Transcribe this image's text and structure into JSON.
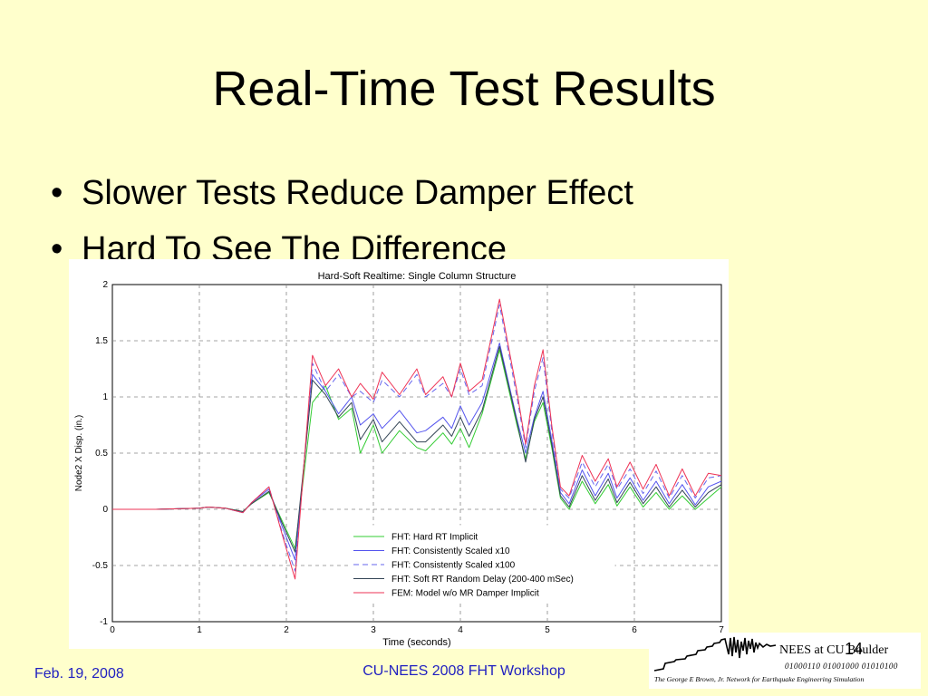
{
  "slide": {
    "title": "Real-Time Test Results",
    "bullets": [
      "Slower Tests Reduce Damper Effect",
      "Hard To See The Difference"
    ],
    "footer_date": "Feb. 19,  2008",
    "footer_center": "CU-NEES 2008 FHT Workshop",
    "slide_number": "14",
    "logo": {
      "name": "NEES at CU Boulder",
      "binary": "01000110  01001000  01010100",
      "subtitle": "The George E Brown, Jr. Network for Earthquake Engineering Simulation"
    }
  },
  "chart_data": {
    "type": "line",
    "title": "Hard-Soft Realtime: Single Column Structure",
    "xlabel": "Time (seconds)",
    "ylabel": "Node2 X Disp. (in.)",
    "xlim": [
      0,
      7
    ],
    "ylim": [
      -1,
      2
    ],
    "xticks": [
      0,
      1,
      2,
      3,
      4,
      5,
      6,
      7
    ],
    "yticks": [
      -1,
      -0.5,
      0,
      0.5,
      1,
      1.5,
      2
    ],
    "grid": true,
    "legend_position": "bottom-center",
    "series": [
      {
        "name": "FHT: Hard RT Implicit",
        "color": "#33cc33",
        "dash": false,
        "x": [
          0,
          0.5,
          1.0,
          1.1,
          1.3,
          1.5,
          1.6,
          1.8,
          1.95,
          2.1,
          2.3,
          2.45,
          2.6,
          2.75,
          2.85,
          3.0,
          3.1,
          3.3,
          3.5,
          3.6,
          3.8,
          3.9,
          4.0,
          4.1,
          4.25,
          4.45,
          4.65,
          4.75,
          4.85,
          4.95,
          5.05,
          5.15,
          5.25,
          5.4,
          5.55,
          5.7,
          5.8,
          5.95,
          6.1,
          6.25,
          6.4,
          6.55,
          6.7,
          6.85,
          7.0
        ],
        "y": [
          0,
          0,
          0.01,
          0.02,
          0.01,
          -0.02,
          0.05,
          0.15,
          -0.1,
          -0.35,
          0.95,
          1.1,
          0.8,
          0.9,
          0.5,
          0.75,
          0.5,
          0.7,
          0.55,
          0.52,
          0.68,
          0.58,
          0.72,
          0.55,
          0.85,
          1.42,
          0.75,
          0.45,
          0.78,
          0.95,
          0.55,
          0.1,
          0.0,
          0.25,
          0.05,
          0.22,
          0.03,
          0.2,
          0.02,
          0.15,
          0.0,
          0.12,
          0.0,
          0.1,
          0.2
        ]
      },
      {
        "name": "FHT: Consistently Scaled x10",
        "color": "#5555ee",
        "dash": false,
        "x": [
          0,
          0.5,
          1.0,
          1.1,
          1.3,
          1.5,
          1.6,
          1.8,
          1.95,
          2.1,
          2.3,
          2.45,
          2.6,
          2.75,
          2.85,
          3.0,
          3.1,
          3.3,
          3.5,
          3.6,
          3.8,
          3.9,
          4.0,
          4.1,
          4.25,
          4.45,
          4.65,
          4.75,
          4.85,
          4.95,
          5.05,
          5.15,
          5.25,
          5.4,
          5.55,
          5.7,
          5.8,
          5.95,
          6.1,
          6.25,
          6.4,
          6.55,
          6.7,
          6.85,
          7.0
        ],
        "y": [
          0,
          0,
          0.01,
          0.02,
          0.01,
          -0.03,
          0.06,
          0.18,
          -0.15,
          -0.45,
          1.2,
          1.05,
          0.85,
          1.0,
          0.75,
          0.85,
          0.72,
          0.88,
          0.68,
          0.7,
          0.82,
          0.72,
          0.92,
          0.75,
          0.95,
          1.48,
          0.8,
          0.5,
          0.82,
          1.05,
          0.62,
          0.15,
          0.05,
          0.35,
          0.12,
          0.32,
          0.1,
          0.28,
          0.08,
          0.25,
          0.05,
          0.22,
          0.04,
          0.2,
          0.25
        ]
      },
      {
        "name": "FHT: Consistently Scaled x100",
        "color": "#6666ee",
        "dash": true,
        "x": [
          0,
          0.5,
          1.0,
          1.1,
          1.3,
          1.5,
          1.6,
          1.8,
          1.95,
          2.1,
          2.3,
          2.45,
          2.6,
          2.75,
          2.85,
          3.0,
          3.1,
          3.3,
          3.5,
          3.6,
          3.8,
          3.9,
          4.0,
          4.1,
          4.25,
          4.45,
          4.65,
          4.75,
          4.85,
          4.95,
          5.05,
          5.15,
          5.25,
          5.4,
          5.55,
          5.7,
          5.8,
          5.95,
          6.1,
          6.25,
          6.4,
          6.55,
          6.7,
          6.85,
          7.0
        ],
        "y": [
          0,
          0,
          0.01,
          0.02,
          0.01,
          -0.03,
          0.06,
          0.2,
          -0.2,
          -0.55,
          1.3,
          1.05,
          1.2,
          1.0,
          1.05,
          0.95,
          1.15,
          1.0,
          1.2,
          1.0,
          1.12,
          1.0,
          1.25,
          1.02,
          1.1,
          1.82,
          1.0,
          0.55,
          1.05,
          1.35,
          0.7,
          0.18,
          0.1,
          0.42,
          0.2,
          0.4,
          0.18,
          0.36,
          0.14,
          0.34,
          0.1,
          0.3,
          0.1,
          0.28,
          0.3
        ]
      },
      {
        "name": "FHT: Soft RT Random Delay (200-400 mSec)",
        "color": "#334455",
        "dash": false,
        "x": [
          0,
          0.5,
          1.0,
          1.1,
          1.3,
          1.5,
          1.6,
          1.8,
          1.95,
          2.1,
          2.3,
          2.45,
          2.6,
          2.75,
          2.85,
          3.0,
          3.1,
          3.3,
          3.5,
          3.6,
          3.8,
          3.9,
          4.0,
          4.1,
          4.25,
          4.45,
          4.65,
          4.75,
          4.85,
          4.95,
          5.05,
          5.15,
          5.25,
          5.4,
          5.55,
          5.7,
          5.8,
          5.95,
          6.1,
          6.25,
          6.4,
          6.55,
          6.7,
          6.85,
          7.0
        ],
        "y": [
          0,
          0,
          0.01,
          0.02,
          0.01,
          -0.02,
          0.05,
          0.16,
          -0.12,
          -0.38,
          1.15,
          1.02,
          0.82,
          0.95,
          0.62,
          0.8,
          0.6,
          0.78,
          0.6,
          0.6,
          0.75,
          0.65,
          0.82,
          0.65,
          0.88,
          1.45,
          0.78,
          0.42,
          0.8,
          1.0,
          0.58,
          0.12,
          0.02,
          0.3,
          0.08,
          0.27,
          0.06,
          0.24,
          0.05,
          0.2,
          0.02,
          0.17,
          0.02,
          0.15,
          0.22
        ]
      },
      {
        "name": "FEM: Model w/o MR Damper Implicit",
        "color": "#ee3355",
        "dash": false,
        "x": [
          0,
          0.5,
          1.0,
          1.1,
          1.3,
          1.5,
          1.6,
          1.8,
          1.95,
          2.1,
          2.3,
          2.45,
          2.6,
          2.75,
          2.85,
          3.0,
          3.1,
          3.3,
          3.5,
          3.6,
          3.8,
          3.9,
          4.0,
          4.1,
          4.25,
          4.45,
          4.65,
          4.75,
          4.85,
          4.95,
          5.05,
          5.15,
          5.25,
          5.4,
          5.55,
          5.7,
          5.8,
          5.95,
          6.1,
          6.25,
          6.4,
          6.55,
          6.7,
          6.85,
          7.0
        ],
        "y": [
          0,
          0,
          0.01,
          0.02,
          0.01,
          -0.03,
          0.06,
          0.2,
          -0.22,
          -0.62,
          1.37,
          1.1,
          1.25,
          1.0,
          1.12,
          0.98,
          1.22,
          1.02,
          1.25,
          1.02,
          1.18,
          1.0,
          1.3,
          1.05,
          1.15,
          1.87,
          1.05,
          0.58,
          1.1,
          1.42,
          0.75,
          0.2,
          0.12,
          0.48,
          0.25,
          0.45,
          0.2,
          0.42,
          0.18,
          0.4,
          0.12,
          0.36,
          0.12,
          0.32,
          0.3
        ]
      }
    ]
  }
}
